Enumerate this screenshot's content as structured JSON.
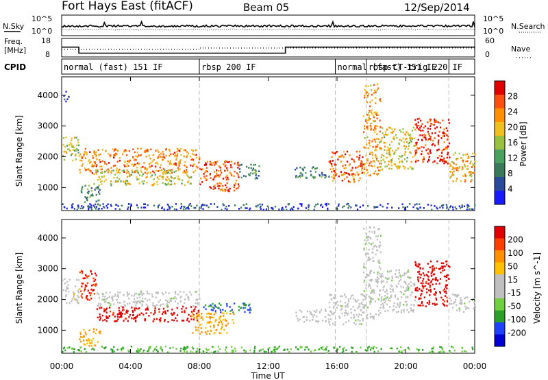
{
  "header": {
    "station": "Fort Hays East (fitACF)",
    "beam": "Beam 05",
    "date": "12/Sep/2014"
  },
  "colors": {
    "power_scale": [
      "#1a1aff",
      "#2a4a9a",
      "#3a7a5a",
      "#4aa060",
      "#9ac040",
      "#f0c020",
      "#ff9000",
      "#ff5010",
      "#e00000"
    ],
    "velocity_scale": [
      "#0000d0",
      "#2040ff",
      "#2aa02a",
      "#70d040",
      "#c0c0c0",
      "#c0c0c0",
      "#ffc000",
      "#ff9000",
      "#ff4000",
      "#e00000"
    ]
  },
  "strips": {
    "nsky_label": "N.Sky",
    "nsearch_label": "N.Search",
    "nsky_ticks": [
      "10^5",
      "10^0"
    ],
    "nsearch_ticks": [
      "10^5",
      "10^0"
    ],
    "freq_label_1": "Freq.",
    "freq_label_2": "[MHz]",
    "freq_ticks": [
      "18",
      "8"
    ],
    "nave_label": "Nave",
    "nave_ticks": [
      "60",
      "0"
    ],
    "cpid_label": "CPID",
    "freq_steps": [
      {
        "start": 0.0,
        "end": 1.0,
        "mhz": 14.5
      },
      {
        "start": 1.0,
        "end": 13.0,
        "mhz": 10.5
      },
      {
        "start": 13.0,
        "end": 24.0,
        "mhz": 14.5
      }
    ],
    "cpid_segments": [
      {
        "start": 0.0,
        "end": 8.0,
        "label": "normal (fast) 151 IF"
      },
      {
        "start": 8.0,
        "end": 15.9,
        "label": "rbsp 200 IF"
      },
      {
        "start": 15.9,
        "end": 17.7,
        "label": "normal (fast) 151 IF"
      },
      {
        "start": 17.7,
        "end": 22.5,
        "label": "rbsp CT-trig 220 IF"
      },
      {
        "start": 22.5,
        "end": 24.0,
        "label": ""
      }
    ]
  },
  "chart_data": [
    {
      "type": "heatmap",
      "title": "",
      "xlabel": "",
      "ylabel": "Slant Range [km]",
      "xlim": [
        0,
        24
      ],
      "ylim": [
        250,
        4600
      ],
      "y_ticks": [
        1000,
        2000,
        3000,
        4000
      ],
      "colorbar_label": "Power [dB]",
      "colorbar_ticks": [
        "4",
        "8",
        "12",
        "16",
        "20",
        "24",
        "28"
      ],
      "patches": [
        {
          "t0": 0.0,
          "t1": 1.0,
          "r0": 1900,
          "r1": 2700,
          "level": 0.55
        },
        {
          "t0": 0.1,
          "t1": 0.4,
          "r0": 3800,
          "r1": 4200,
          "level": 0.2
        },
        {
          "t0": 1.0,
          "t1": 8.0,
          "r0": 1500,
          "r1": 2300,
          "level": 0.75
        },
        {
          "t0": 1.8,
          "t1": 7.5,
          "r0": 1100,
          "r1": 1600,
          "level": 0.55
        },
        {
          "t0": 1.0,
          "t1": 2.2,
          "r0": 500,
          "r1": 1100,
          "level": 0.35
        },
        {
          "t0": 8.0,
          "t1": 10.3,
          "r0": 900,
          "r1": 1900,
          "level": 0.85
        },
        {
          "t0": 10.3,
          "t1": 11.5,
          "r0": 1300,
          "r1": 1800,
          "level": 0.3
        },
        {
          "t0": 13.5,
          "t1": 15.5,
          "r0": 1300,
          "r1": 1700,
          "level": 0.3
        },
        {
          "t0": 15.5,
          "t1": 17.5,
          "r0": 1200,
          "r1": 2200,
          "level": 0.8
        },
        {
          "t0": 17.5,
          "t1": 18.5,
          "r0": 1400,
          "r1": 4400,
          "level": 0.7
        },
        {
          "t0": 18.5,
          "t1": 20.5,
          "r0": 1600,
          "r1": 3000,
          "level": 0.6
        },
        {
          "t0": 20.5,
          "t1": 22.5,
          "r0": 1800,
          "r1": 3300,
          "level": 0.9
        },
        {
          "t0": 22.5,
          "t1": 24.0,
          "r0": 1200,
          "r1": 2200,
          "level": 0.65
        },
        {
          "t0": 0.0,
          "t1": 24.0,
          "r0": 300,
          "r1": 500,
          "level": 0.15
        }
      ]
    },
    {
      "type": "heatmap",
      "title": "",
      "xlabel": "Time UT",
      "ylabel": "Slant Range [km]",
      "xlim": [
        0,
        24
      ],
      "ylim": [
        250,
        4600
      ],
      "y_ticks": [
        1000,
        2000,
        3000,
        4000
      ],
      "x_ticks": [
        "00:00",
        "04:00",
        "08:00",
        "12:00",
        "16:00",
        "20:00",
        "00:00"
      ],
      "colorbar_label": "Velocity [m s^-1]",
      "colorbar_ticks": [
        "-200",
        "-100",
        "-50",
        "-15",
        "15",
        "50",
        "100",
        "200"
      ],
      "patches": [
        {
          "t0": 0.0,
          "t1": 1.0,
          "r0": 1900,
          "r1": 2700,
          "level": 0.55
        },
        {
          "t0": 1.0,
          "t1": 2.0,
          "r0": 2000,
          "r1": 3000,
          "level": 0.9
        },
        {
          "t0": 2.0,
          "t1": 8.0,
          "r0": 1300,
          "r1": 1800,
          "level": 0.95
        },
        {
          "t0": 2.0,
          "t1": 8.0,
          "r0": 1800,
          "r1": 2300,
          "level": 0.45
        },
        {
          "t0": 7.5,
          "t1": 10.0,
          "r0": 900,
          "r1": 1600,
          "level": 0.7
        },
        {
          "t0": 8.0,
          "t1": 11.0,
          "r0": 1600,
          "r1": 1900,
          "level": 0.2
        },
        {
          "t0": 1.0,
          "t1": 2.2,
          "r0": 500,
          "r1": 1100,
          "level": 0.7
        },
        {
          "t0": 13.5,
          "t1": 15.5,
          "r0": 1300,
          "r1": 1700,
          "level": 0.5
        },
        {
          "t0": 15.5,
          "t1": 17.5,
          "r0": 1200,
          "r1": 2200,
          "level": 0.45
        },
        {
          "t0": 17.5,
          "t1": 18.5,
          "r0": 1400,
          "r1": 4400,
          "level": 0.45
        },
        {
          "t0": 18.5,
          "t1": 20.5,
          "r0": 1600,
          "r1": 3000,
          "level": 0.45
        },
        {
          "t0": 20.5,
          "t1": 22.5,
          "r0": 1800,
          "r1": 3300,
          "level": 0.95
        },
        {
          "t0": 22.5,
          "t1": 24.0,
          "r0": 1600,
          "r1": 2200,
          "level": 0.45
        },
        {
          "t0": 0.0,
          "t1": 24.0,
          "r0": 300,
          "r1": 500,
          "level": 0.3
        }
      ]
    }
  ]
}
